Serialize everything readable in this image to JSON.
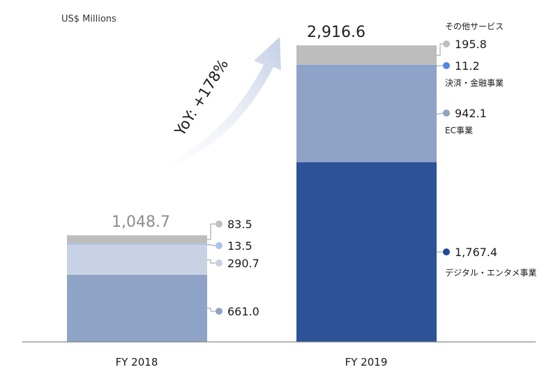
{
  "chart_data": {
    "type": "bar",
    "stacked": true,
    "unit_label": "US$ Millions",
    "growth_label": "YoY: +178%",
    "ylim": [
      0,
      3000
    ],
    "categories": [
      "FY 2018",
      "FY 2019"
    ],
    "totals": [
      "1,048.7",
      "2,916.6"
    ],
    "series": [
      {
        "name": "デジタル・エンタメ事業",
        "values": [
          661.0,
          1767.4
        ],
        "labels": [
          "661.0",
          "1,767.4"
        ],
        "colors": [
          "#8fa3c7",
          "#2c5398"
        ],
        "marker_colors": [
          "#8fa3c7",
          "#1f4a96"
        ]
      },
      {
        "name": "EC事業",
        "values": [
          290.7,
          942.1
        ],
        "labels": [
          "290.7",
          "942.1"
        ],
        "colors": [
          "#c8d2e4",
          "#8fa3c7"
        ],
        "marker_colors": [
          "#c8d2e4",
          "#8fa3c7"
        ]
      },
      {
        "name": "決済・金融事業",
        "values": [
          13.5,
          11.2
        ],
        "labels": [
          "13.5",
          "11.2"
        ],
        "colors": [
          "#a9c3ec",
          "#6494dc"
        ],
        "marker_colors": [
          "#a9c3ec",
          "#4e88e0"
        ]
      },
      {
        "name": "その他サービス",
        "values": [
          83.5,
          195.8
        ],
        "labels": [
          "83.5",
          "195.8"
        ],
        "colors": [
          "#bdbdbd",
          "#bdbdbd"
        ],
        "marker_colors": [
          "#bdbdbd",
          "#bdbdbd"
        ]
      }
    ],
    "label_colors": {
      "total_2018": "#8c8c8c",
      "total_2019": "#222222",
      "values": "#1a1a1a",
      "arrow": "#c9d3e8",
      "axis": "#888888"
    }
  }
}
